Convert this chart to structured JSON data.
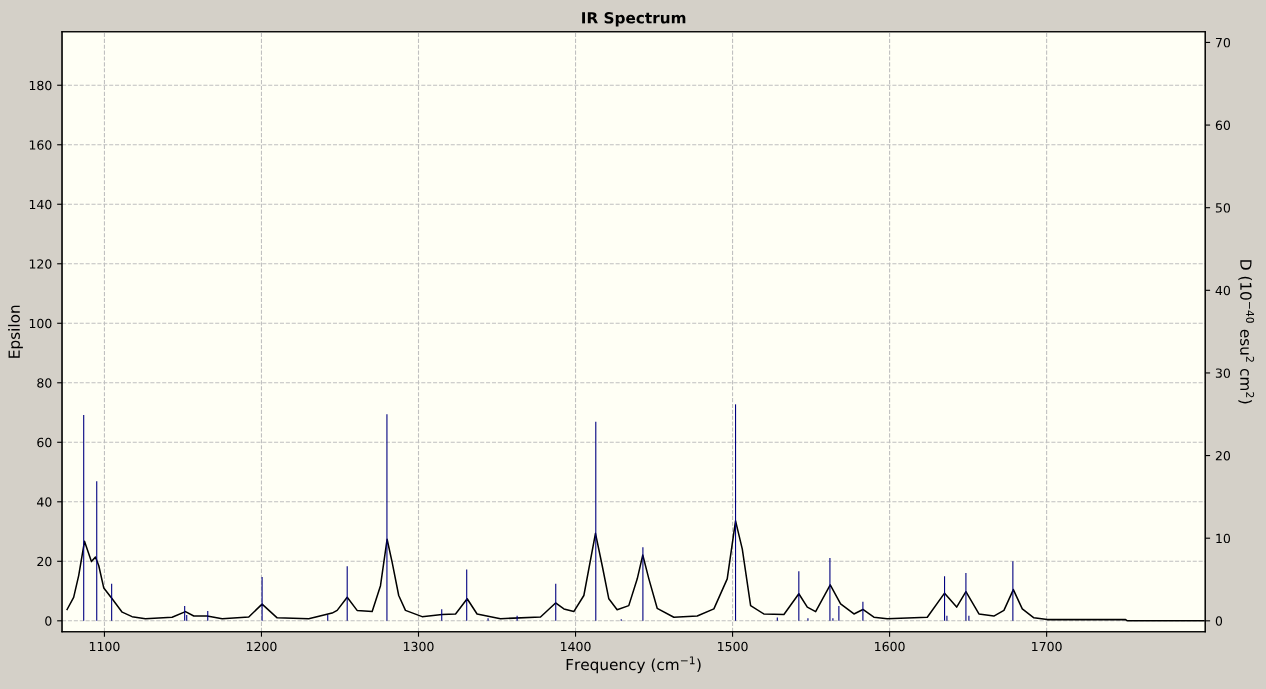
{
  "chart_data": {
    "type": "line",
    "title": "IR Spectrum",
    "xlabel": "Frequency (cm$^{−1}$)",
    "ylabel": "Epsilon",
    "y2label": "D (10$^{−40}$ esu$^{2}$ cm$^{2}$)",
    "xlim": [
      1073,
      1801
    ],
    "xticks": [
      1100,
      1200,
      1300,
      1400,
      1500,
      1600,
      1700
    ],
    "ylim": [
      -3.7,
      198
    ],
    "yticks": [
      0,
      20,
      40,
      60,
      80,
      100,
      120,
      140,
      160,
      180
    ],
    "y2lim": [
      -1.33,
      71.3
    ],
    "y2ticks": [
      0,
      10,
      20,
      30,
      40,
      50,
      60,
      70
    ],
    "grid": true,
    "line_style": "solid",
    "series": [
      {
        "type": "bar",
        "axis": "y2",
        "color": "#000080",
        "x": [
          1086.8,
          1095.1,
          1104.6,
          1151.1,
          1152.4,
          1165.8,
          1200.4,
          1242.2,
          1254.6,
          1279.9,
          1314.8,
          1330.7,
          1344.3,
          1362.8,
          1387.4,
          1412.9,
          1429.1,
          1442.9,
          1501.9,
          1528.5,
          1542.2,
          1548.0,
          1562.0,
          1563.9,
          1567.7,
          1583.0,
          1635.0,
          1636.5,
          1648.6,
          1650.5,
          1678.5
        ],
        "values": [
          24.9,
          16.9,
          4.5,
          1.8,
          0.7,
          1.2,
          5.3,
          0.7,
          6.6,
          25.0,
          1.4,
          6.2,
          0.3,
          0.6,
          4.5,
          24.1,
          0.2,
          8.9,
          26.2,
          0.4,
          6.0,
          0.3,
          7.6,
          0.3,
          1.8,
          2.3,
          5.4,
          0.6,
          5.8,
          0.6,
          7.2
        ]
      },
      {
        "color": "#000000",
        "x": [
          1076.2,
          1080.4,
          1083.6,
          1087.3,
          1091.7,
          1094.3,
          1096.4,
          1099.6,
          1104.9,
          1111.3,
          1117.6,
          1126.1,
          1143.1,
          1151.6,
          1156.9,
          1165.4,
          1175.0,
          1191.9,
          1200.4,
          1210.0,
          1230.1,
          1245.0,
          1248.2,
          1254.6,
          1260.9,
          1270.5,
          1275.8,
          1280.0,
          1283.2,
          1287.4,
          1291.7,
          1302.3,
          1315.0,
          1323.6,
          1331.0,
          1337.3,
          1352.2,
          1377.7,
          1387.3,
          1392.6,
          1398.9,
          1405.3,
          1412.7,
          1417.0,
          1421.2,
          1426.5,
          1433.9,
          1439.3,
          1442.8,
          1446.7,
          1452.0,
          1462.6,
          1477.5,
          1488.1,
          1496.6,
          1501.9,
          1506.2,
          1511.5,
          1519.9,
          1532.7,
          1542.2,
          1547.6,
          1552.9,
          1562.2,
          1568.8,
          1577.3,
          1583.0,
          1590.0,
          1598.5,
          1624.0,
          1635.0,
          1642.7,
          1648.6,
          1656.9,
          1666.4,
          1672.8,
          1678.8,
          1684.5,
          1691.9,
          1700.4,
          1750.3,
          1751.4,
          1800.2
        ],
        "values": [
          3.8,
          7.9,
          15.2,
          26.7,
          19.9,
          21.4,
          18.5,
          11.0,
          7.4,
          2.9,
          1.4,
          0.7,
          1.2,
          3.1,
          1.6,
          1.6,
          0.7,
          1.3,
          5.6,
          1.0,
          0.7,
          2.6,
          3.5,
          7.9,
          3.5,
          3.1,
          11.8,
          27.4,
          19.7,
          8.5,
          3.5,
          1.4,
          2.1,
          2.3,
          7.4,
          2.3,
          0.7,
          1.3,
          6.0,
          4.0,
          3.1,
          8.5,
          29.4,
          18.5,
          7.4,
          3.7,
          5.1,
          14.1,
          22.1,
          14.1,
          4.2,
          1.2,
          1.6,
          4.0,
          14.1,
          33.6,
          24.1,
          5.1,
          2.3,
          2.1,
          9.1,
          4.6,
          3.1,
          12.1,
          5.7,
          2.3,
          3.8,
          1.2,
          0.7,
          1.2,
          9.3,
          4.6,
          9.8,
          2.3,
          1.6,
          3.5,
          10.5,
          4.0,
          1.0,
          0.4,
          0.4,
          0.0,
          0.0
        ]
      }
    ]
  }
}
